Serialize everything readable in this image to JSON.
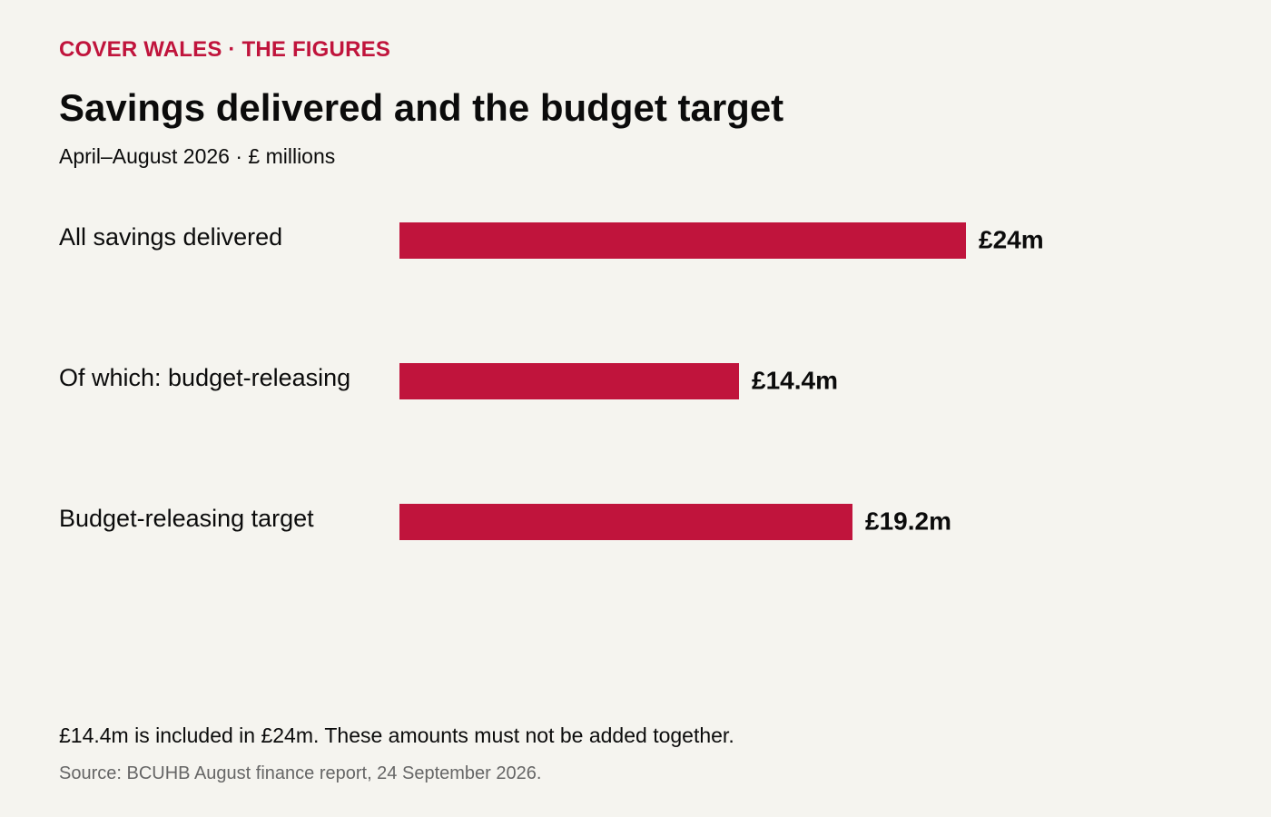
{
  "header": {
    "kicker": "COVER WALES · THE FIGURES",
    "title": "Savings delivered and the budget target",
    "subtitle": "April–August 2026 · £ millions"
  },
  "chart_data": {
    "type": "bar",
    "orientation": "horizontal",
    "categories": [
      "All savings delivered",
      "Of which: budget-releasing",
      "Budget-releasing target"
    ],
    "values": [
      24,
      14.4,
      19.2
    ],
    "value_labels": [
      "£24m",
      "£14.4m",
      "£19.2m"
    ],
    "unit": "£ millions",
    "xlim": [
      0,
      24
    ],
    "grid": false,
    "bar_color": "#c0143c"
  },
  "footer": {
    "note": "£14.4m is included in £24m. These amounts must not be added together.",
    "source": "Source: BCUHB August finance report, 24 September 2026."
  }
}
